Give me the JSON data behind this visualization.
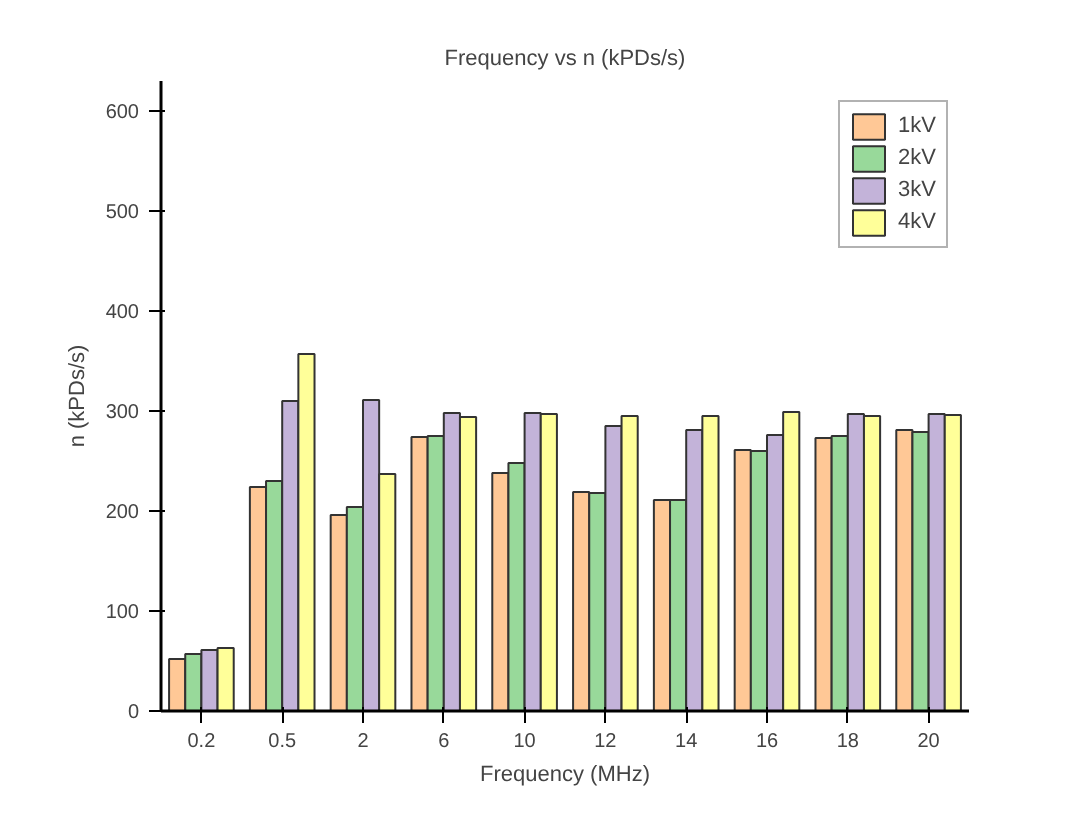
{
  "chart_data": {
    "type": "bar",
    "title": "Frequency vs n (kPDs/s)",
    "xlabel": "Frequency (MHz)",
    "ylabel": "n (kPDs/s)",
    "categories": [
      "0.2",
      "0.5",
      "2",
      "6",
      "10",
      "12",
      "14",
      "16",
      "18",
      "20"
    ],
    "series": [
      {
        "name": "1kV",
        "color": "#ffc896",
        "values": [
          52,
          224,
          196,
          274,
          238,
          219,
          211,
          261,
          273,
          281
        ]
      },
      {
        "name": "2kV",
        "color": "#98d99a",
        "values": [
          57,
          230,
          204,
          275,
          248,
          218,
          211,
          260,
          275,
          279
        ]
      },
      {
        "name": "3kV",
        "color": "#c3b3d9",
        "values": [
          61,
          310,
          311,
          298,
          298,
          285,
          281,
          276,
          297,
          297
        ]
      },
      {
        "name": "4kV",
        "color": "#ffff99",
        "values": [
          63,
          357,
          237,
          294,
          297,
          295,
          295,
          299,
          295,
          296
        ]
      }
    ],
    "ylim": [
      0,
      630
    ],
    "yticks": [
      0,
      100,
      200,
      300,
      400,
      500,
      600
    ],
    "grid": false,
    "legend": "top right"
  }
}
